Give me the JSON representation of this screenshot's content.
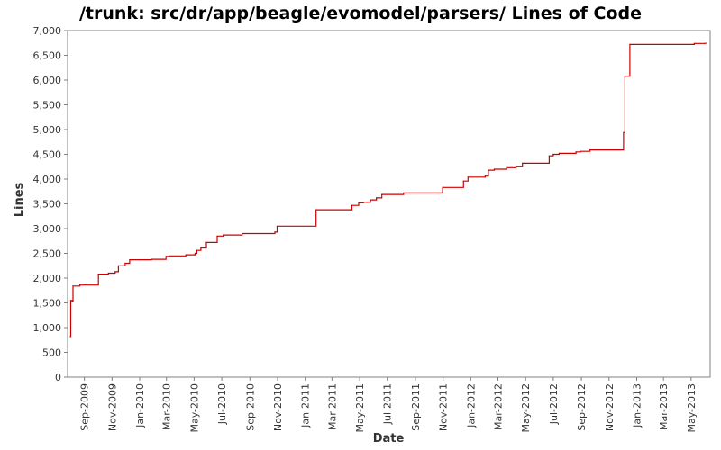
{
  "chart_data": {
    "type": "line",
    "title": "/trunk: src/dr/app/beagle/evomodel/parsers/ Lines of Code",
    "xlabel": "Date",
    "ylabel": "Lines",
    "x_type": "date",
    "xlim": [
      "2009-07-26",
      "2013-06-12"
    ],
    "ylim": [
      0,
      7000
    ],
    "yticks": [
      0,
      500,
      1000,
      1500,
      2000,
      2500,
      3000,
      3500,
      4000,
      4500,
      5000,
      5500,
      6000,
      6500,
      7000
    ],
    "yticklabels": [
      "0",
      "500",
      "1,000",
      "1,500",
      "2,000",
      "2,500",
      "3,000",
      "3,500",
      "4,000",
      "4,500",
      "5,000",
      "5,500",
      "6,000",
      "6,500",
      "7,000"
    ],
    "xticks": [
      "2009-09-01",
      "2009-11-01",
      "2010-01-01",
      "2010-03-01",
      "2010-05-01",
      "2010-07-01",
      "2010-09-01",
      "2010-11-01",
      "2011-01-01",
      "2011-03-01",
      "2011-05-01",
      "2011-07-01",
      "2011-09-01",
      "2011-11-01",
      "2012-01-01",
      "2012-03-01",
      "2012-05-01",
      "2012-07-01",
      "2012-09-01",
      "2012-11-01",
      "2013-01-01",
      "2013-03-01",
      "2013-05-01"
    ],
    "xticklabels": [
      "Sep-2009",
      "Nov-2009",
      "Jan-2010",
      "Mar-2010",
      "May-2010",
      "Jul-2010",
      "Sep-2010",
      "Nov-2010",
      "Jan-2011",
      "Mar-2011",
      "May-2011",
      "Jul-2011",
      "Sep-2011",
      "Nov-2011",
      "Jan-2012",
      "Mar-2012",
      "May-2012",
      "Jul-2012",
      "Sep-2012",
      "Nov-2012",
      "Jan-2013",
      "Mar-2013",
      "May-2013"
    ],
    "grid": false,
    "step": true,
    "series": [
      {
        "color": "#cc0000",
        "points": [
          [
            "2009-08-01",
            820
          ],
          [
            "2009-08-02",
            1550
          ],
          [
            "2009-08-05",
            1530
          ],
          [
            "2009-08-07",
            1840
          ],
          [
            "2009-08-22",
            1860
          ],
          [
            "2009-10-02",
            2080
          ],
          [
            "2009-10-24",
            2100
          ],
          [
            "2009-11-08",
            2130
          ],
          [
            "2009-11-15",
            2250
          ],
          [
            "2009-11-30",
            2300
          ],
          [
            "2009-12-10",
            2370
          ],
          [
            "2010-01-27",
            2380
          ],
          [
            "2010-02-28",
            2440
          ],
          [
            "2010-03-07",
            2450
          ],
          [
            "2010-04-13",
            2470
          ],
          [
            "2010-05-03",
            2500
          ],
          [
            "2010-05-07",
            2560
          ],
          [
            "2010-05-16",
            2610
          ],
          [
            "2010-05-28",
            2720
          ],
          [
            "2010-06-21",
            2850
          ],
          [
            "2010-07-04",
            2870
          ],
          [
            "2010-08-15",
            2900
          ],
          [
            "2010-10-26",
            2930
          ],
          [
            "2010-10-31",
            3050
          ],
          [
            "2011-01-25",
            3380
          ],
          [
            "2011-04-14",
            3470
          ],
          [
            "2011-04-29",
            3520
          ],
          [
            "2011-05-09",
            3530
          ],
          [
            "2011-05-25",
            3580
          ],
          [
            "2011-06-07",
            3620
          ],
          [
            "2011-06-19",
            3690
          ],
          [
            "2011-08-06",
            3720
          ],
          [
            "2011-10-31",
            3830
          ],
          [
            "2011-12-16",
            3960
          ],
          [
            "2011-12-26",
            4040
          ],
          [
            "2012-02-02",
            4060
          ],
          [
            "2012-02-09",
            4180
          ],
          [
            "2012-02-22",
            4200
          ],
          [
            "2012-03-20",
            4230
          ],
          [
            "2012-04-10",
            4250
          ],
          [
            "2012-04-24",
            4320
          ],
          [
            "2012-06-22",
            4470
          ],
          [
            "2012-07-01",
            4500
          ],
          [
            "2012-07-14",
            4520
          ],
          [
            "2012-08-20",
            4550
          ],
          [
            "2012-08-30",
            4560
          ],
          [
            "2012-09-20",
            4590
          ],
          [
            "2012-12-03",
            4940
          ],
          [
            "2012-12-06",
            6080
          ],
          [
            "2012-12-17",
            6720
          ],
          [
            "2013-05-08",
            6740
          ],
          [
            "2013-06-02",
            6750
          ]
        ]
      }
    ]
  }
}
